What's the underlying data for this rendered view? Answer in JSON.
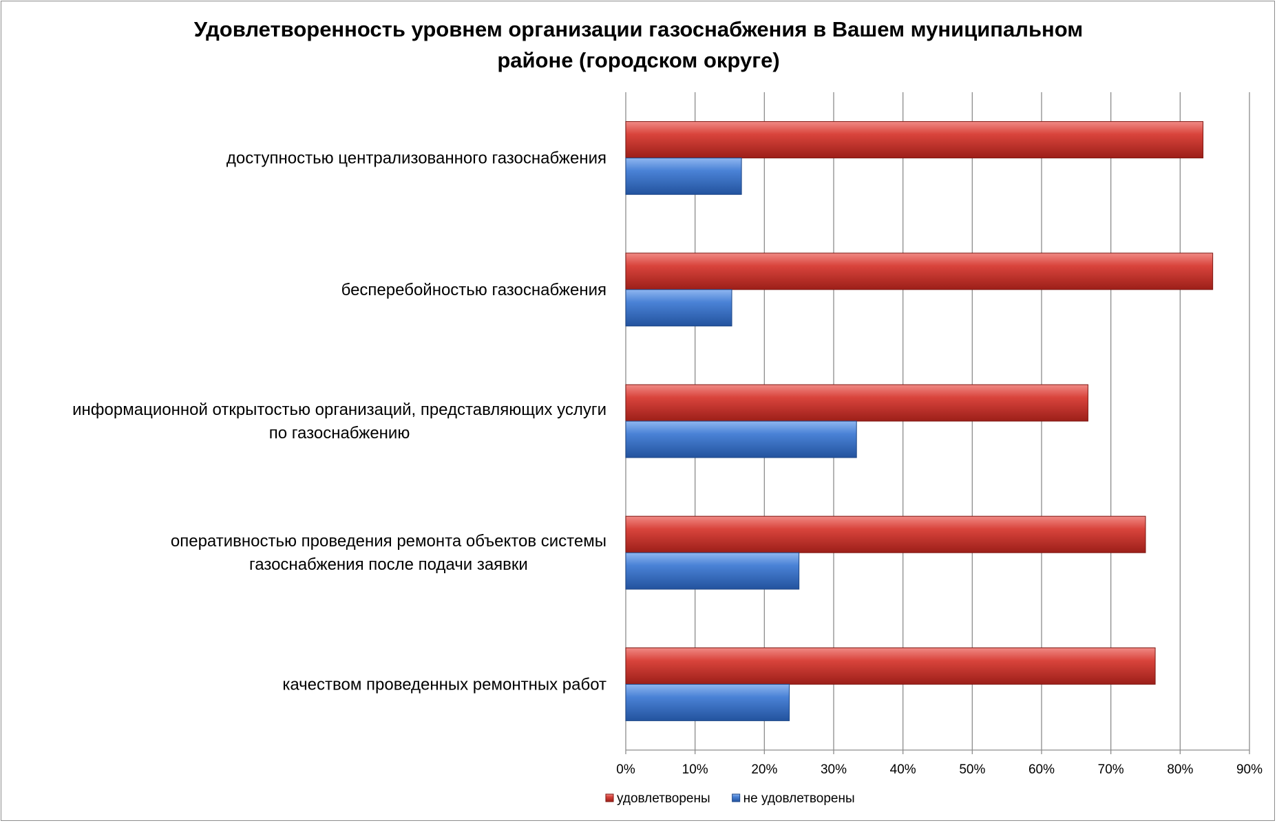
{
  "chart_data": {
    "type": "bar",
    "orientation": "horizontal",
    "title_lines": [
      "Удовлетворенность уровнем организации газоснабжения в Вашем муниципальном",
      "районе (городском округе)"
    ],
    "categories": [
      [
        "доступностью централизованного газоснабжения"
      ],
      [
        "бесперебойностью  газоснабжения"
      ],
      [
        "информационной открытостью организаций, представляющих услуги",
        "по газоснабжению"
      ],
      [
        "оперативностью проведения ремонта объектов системы",
        "газоснабжения после подачи заявки"
      ],
      [
        "качеством проведенных ремонтных работ"
      ]
    ],
    "series": [
      {
        "name": "удовлетворены",
        "color": "#c0392f",
        "values": [
          83.3,
          84.7,
          66.7,
          75.0,
          76.4
        ]
      },
      {
        "name": "не удовлетворены",
        "color": "#3f76c8",
        "values": [
          16.7,
          15.3,
          33.3,
          25.0,
          23.6
        ]
      }
    ],
    "xlim": [
      0,
      90
    ],
    "xticks": [
      "0%",
      "10%",
      "20%",
      "30%",
      "40%",
      "50%",
      "60%",
      "70%",
      "80%",
      "90%"
    ],
    "grid": true,
    "legend": "bottom"
  }
}
